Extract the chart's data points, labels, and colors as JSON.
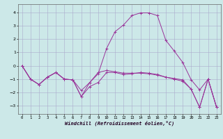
{
  "xlabel": "Windchill (Refroidissement éolien,°C)",
  "background_color": "#cce8e8",
  "grid_color": "#aaaacc",
  "line_color": "#993399",
  "xlim": [
    -0.5,
    23.5
  ],
  "ylim": [
    -3.6,
    4.6
  ],
  "yticks": [
    -3,
    -2,
    -1,
    0,
    1,
    2,
    3,
    4
  ],
  "xticks": [
    0,
    1,
    2,
    3,
    4,
    5,
    6,
    7,
    8,
    9,
    10,
    11,
    12,
    13,
    14,
    15,
    16,
    17,
    18,
    19,
    20,
    21,
    22,
    23
  ],
  "line1_x": [
    0,
    1,
    2,
    3,
    4,
    5,
    6,
    7,
    8,
    9,
    10,
    11,
    12,
    13,
    14,
    15,
    16,
    17,
    18,
    19,
    20,
    21,
    22,
    23
  ],
  "line1_y": [
    0.0,
    -1.0,
    -1.4,
    -0.85,
    -0.5,
    -1.0,
    -1.05,
    -2.3,
    -1.25,
    -0.5,
    -0.35,
    -0.45,
    -0.55,
    -0.55,
    -0.55,
    -0.6,
    -0.7,
    -0.85,
    -0.95,
    -1.05,
    -1.75,
    -3.1,
    -1.0,
    -3.1
  ],
  "line2_x": [
    0,
    1,
    2,
    3,
    4,
    5,
    6,
    7,
    8,
    9,
    10,
    11,
    12,
    13,
    14,
    15,
    16,
    17,
    18,
    19,
    20,
    21,
    22,
    23
  ],
  "line2_y": [
    0.0,
    -1.0,
    -1.4,
    -0.85,
    -0.5,
    -1.0,
    -1.05,
    -1.85,
    -1.25,
    -0.6,
    1.3,
    2.55,
    3.05,
    3.75,
    3.95,
    3.95,
    3.75,
    1.9,
    1.1,
    0.25,
    -1.05,
    -1.8,
    -1.0,
    -3.1
  ],
  "line3_x": [
    0,
    1,
    2,
    3,
    4,
    5,
    6,
    7,
    8,
    9,
    10,
    11,
    12,
    13,
    14,
    15,
    16,
    17,
    18,
    19,
    20,
    21,
    22,
    23
  ],
  "line3_y": [
    0.0,
    -1.0,
    -1.4,
    -0.85,
    -0.5,
    -1.0,
    -1.05,
    -2.3,
    -1.55,
    -1.25,
    -0.5,
    -0.5,
    -0.65,
    -0.6,
    -0.5,
    -0.55,
    -0.65,
    -0.85,
    -1.0,
    -1.15,
    -1.75,
    -3.1,
    -1.0,
    -3.1
  ]
}
